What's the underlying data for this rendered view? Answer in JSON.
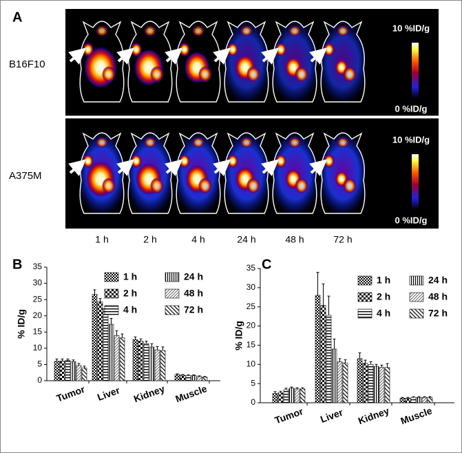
{
  "panel_a": {
    "label": "A",
    "rows": [
      {
        "name": "B16F10",
        "max_label": "10 %ID/g",
        "min_label": "0 %ID/g"
      },
      {
        "name": "A375M",
        "max_label": "10 %ID/g",
        "min_label": "0 %ID/g"
      }
    ],
    "timepoints": [
      "1 h",
      "2 h",
      "4 h",
      "24 h",
      "48 h",
      "72 h"
    ]
  },
  "chart_data": [
    {
      "type": "bar",
      "panel_label": "B",
      "y_label": "% ID/g",
      "categories": [
        "Tumor",
        "Liver",
        "Kidney",
        "Muscle"
      ],
      "ylim": [
        0,
        35
      ],
      "yticks": [
        0,
        5,
        10,
        15,
        20,
        25,
        30,
        35
      ],
      "series": [
        {
          "name": "1 h",
          "pattern": "checker-dense",
          "values": [
            6.0,
            26.6,
            12.7,
            1.9
          ],
          "errors": [
            0.7,
            1.4,
            0.8,
            0.2
          ]
        },
        {
          "name": "2 h",
          "pattern": "checker",
          "values": [
            6.1,
            24.3,
            12.2,
            1.7
          ],
          "errors": [
            0.6,
            1.0,
            0.7,
            0.2
          ]
        },
        {
          "name": "4 h",
          "pattern": "horizontal",
          "values": [
            6.2,
            22.2,
            11.5,
            1.6
          ],
          "errors": [
            0.5,
            0.6,
            0.7,
            0.2
          ]
        },
        {
          "name": "24 h",
          "pattern": "vertical",
          "values": [
            5.9,
            17.4,
            10.4,
            1.6
          ],
          "errors": [
            0.5,
            1.8,
            1.0,
            0.2
          ]
        },
        {
          "name": "48 h",
          "pattern": "diagonal-dense",
          "values": [
            4.7,
            13.9,
            9.5,
            1.3
          ],
          "errors": [
            0.6,
            1.5,
            1.0,
            0.2
          ]
        },
        {
          "name": "72 h",
          "pattern": "diagonal",
          "values": [
            3.9,
            13.2,
            9.3,
            1.1
          ],
          "errors": [
            0.6,
            1.2,
            1.1,
            0.2
          ]
        }
      ]
    },
    {
      "type": "bar",
      "panel_label": "C",
      "y_label": "% ID/g",
      "categories": [
        "Tumor",
        "Liver",
        "Kidney",
        "Muscle"
      ],
      "ylim": [
        0,
        35
      ],
      "yticks": [
        0,
        5,
        10,
        15,
        20,
        25,
        30,
        35
      ],
      "series": [
        {
          "name": "1 h",
          "pattern": "checker-dense",
          "values": [
            2.4,
            28.0,
            11.5,
            1.2
          ],
          "errors": [
            0.5,
            6.0,
            1.5,
            0.2
          ]
        },
        {
          "name": "2 h",
          "pattern": "checker",
          "values": [
            2.6,
            25.4,
            10.3,
            1.2
          ],
          "errors": [
            0.4,
            5.6,
            0.8,
            0.2
          ]
        },
        {
          "name": "4 h",
          "pattern": "horizontal",
          "values": [
            3.4,
            22.8,
            10.0,
            1.4
          ],
          "errors": [
            0.4,
            5.0,
            0.7,
            0.2
          ]
        },
        {
          "name": "24 h",
          "pattern": "vertical",
          "values": [
            3.8,
            14.0,
            9.5,
            1.4
          ],
          "errors": [
            0.3,
            2.6,
            0.5,
            0.2
          ]
        },
        {
          "name": "48 h",
          "pattern": "diagonal-dense",
          "values": [
            3.6,
            10.7,
            9.2,
            1.4
          ],
          "errors": [
            0.3,
            0.8,
            0.6,
            0.2
          ]
        },
        {
          "name": "72 h",
          "pattern": "diagonal",
          "values": [
            3.6,
            10.4,
            9.2,
            1.4
          ],
          "errors": [
            0.3,
            0.8,
            1.0,
            0.2
          ]
        }
      ]
    }
  ]
}
